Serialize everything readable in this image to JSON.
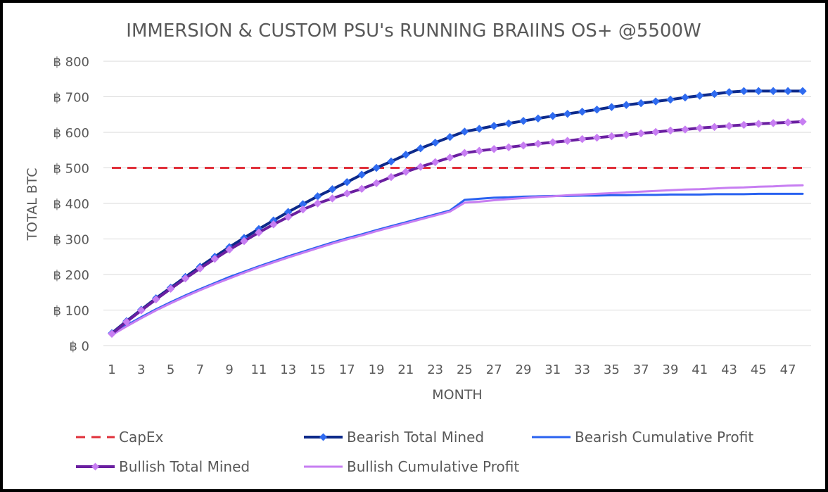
{
  "chart_data": {
    "type": "line",
    "title": "IMMERSION & CUSTOM PSU's RUNNING BRAIINS OS+ @5500W",
    "xlabel": "MONTH",
    "ylabel": "TOTAL BTC",
    "ylim": [
      0,
      800
    ],
    "yticks": [
      {
        "value": 0,
        "label": "฿ 0"
      },
      {
        "value": 100,
        "label": "฿ 100"
      },
      {
        "value": 200,
        "label": "฿ 200"
      },
      {
        "value": 300,
        "label": "฿ 300"
      },
      {
        "value": 400,
        "label": "฿ 400"
      },
      {
        "value": 500,
        "label": "฿ 500"
      },
      {
        "value": 600,
        "label": "฿ 600"
      },
      {
        "value": 700,
        "label": "฿ 700"
      },
      {
        "value": 800,
        "label": "฿ 800"
      }
    ],
    "xrange": [
      1,
      48
    ],
    "xticks": [
      1,
      3,
      5,
      7,
      9,
      11,
      13,
      15,
      17,
      19,
      21,
      23,
      25,
      27,
      29,
      31,
      33,
      35,
      37,
      39,
      41,
      43,
      45,
      47
    ],
    "grid": "horizontal",
    "legend_position": "bottom",
    "series": [
      {
        "name": "CapEx",
        "color": "#e0303a",
        "style": "dashed",
        "marker": "none",
        "values": [
          500,
          500,
          500,
          500,
          500,
          500,
          500,
          500,
          500,
          500,
          500,
          500,
          500,
          500,
          500,
          500,
          500,
          500,
          500,
          500,
          500,
          500,
          500,
          500,
          500,
          500,
          500,
          500,
          500,
          500,
          500,
          500,
          500,
          500,
          500,
          500,
          500,
          500,
          500,
          500,
          500,
          500,
          500,
          500,
          500,
          500,
          500,
          500
        ]
      },
      {
        "name": "Bearish Total Mined",
        "color": "#0d2a8a",
        "markerColor": "#2f6bf0",
        "style": "solid",
        "marker": "diamond",
        "values": [
          35,
          69,
          101,
          133,
          163,
          193,
          222,
          250,
          277,
          303,
          328,
          352,
          376,
          398,
          420,
          440,
          460,
          481,
          500,
          518,
          537,
          555,
          571,
          587,
          602,
          610,
          618,
          625,
          632,
          639,
          646,
          652,
          658,
          664,
          671,
          677,
          682,
          687,
          692,
          698,
          703,
          708,
          713,
          716,
          716,
          716,
          716,
          716
        ]
      },
      {
        "name": "Bearish Cumulative Profit",
        "color": "#2a62f0",
        "style": "solid",
        "marker": "none",
        "values": [
          33,
          57,
          80,
          102,
          122,
          141,
          159,
          176,
          193,
          208,
          223,
          237,
          251,
          264,
          277,
          290,
          302,
          313,
          325,
          336,
          347,
          358,
          369,
          380,
          410,
          413,
          416,
          417,
          419,
          420,
          421,
          421,
          422,
          422,
          423,
          423,
          424,
          424,
          425,
          425,
          425,
          426,
          426,
          426,
          427,
          427,
          427,
          427
        ]
      },
      {
        "name": "Bullish Total Mined",
        "color": "#6a1fa0",
        "markerColor": "#c77ef2",
        "style": "solid",
        "marker": "diamond",
        "values": [
          33,
          67,
          99,
          130,
          160,
          189,
          217,
          244,
          270,
          294,
          318,
          341,
          362,
          383,
          400,
          414,
          428,
          441,
          457,
          474,
          489,
          503,
          516,
          529,
          542,
          548,
          553,
          558,
          563,
          568,
          572,
          576,
          581,
          585,
          589,
          593,
          597,
          601,
          605,
          608,
          612,
          615,
          618,
          621,
          624,
          626,
          628,
          630
        ]
      },
      {
        "name": "Bullish Cumulative Profit",
        "color": "#c77ef2",
        "style": "solid",
        "marker": "none",
        "values": [
          30,
          54,
          77,
          99,
          119,
          138,
          156,
          173,
          189,
          205,
          220,
          234,
          248,
          261,
          274,
          287,
          299,
          310,
          322,
          333,
          344,
          355,
          366,
          377,
          402,
          405,
          409,
          412,
          415,
          418,
          420,
          423,
          425,
          427,
          429,
          431,
          433,
          435,
          437,
          439,
          440,
          442,
          444,
          445,
          447,
          448,
          450,
          451
        ]
      }
    ]
  }
}
